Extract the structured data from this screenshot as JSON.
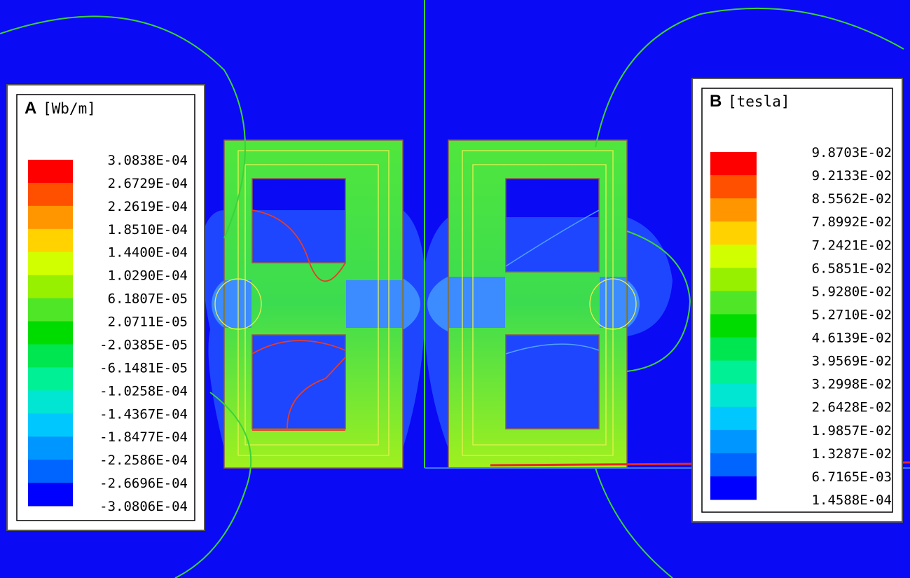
{
  "legends": [
    {
      "letter": "A",
      "unit": "[Wb/m]",
      "labels": [
        "3.0838E-04",
        "2.6729E-04",
        "2.2619E-04",
        "1.8510E-04",
        "1.4400E-04",
        "1.0290E-04",
        "6.1807E-05",
        "2.0711E-05",
        "-2.0385E-05",
        "-6.1481E-05",
        "-1.0258E-04",
        "-1.4367E-04",
        "-1.8477E-04",
        "-2.2586E-04",
        "-2.6696E-04",
        "-3.0806E-04"
      ],
      "colors": [
        "#ff0000",
        "#ff5000",
        "#ff9600",
        "#ffd200",
        "#d2ff00",
        "#96f000",
        "#50e628",
        "#00dc00",
        "#00e650",
        "#00f096",
        "#00e6d2",
        "#00c8ff",
        "#0096ff",
        "#0064ff",
        "#0000ff"
      ]
    },
    {
      "letter": "B",
      "unit": "[tesla]",
      "labels": [
        "9.8703E-02",
        "9.2133E-02",
        "8.5562E-02",
        "7.8992E-02",
        "7.2421E-02",
        "6.5851E-02",
        "5.9280E-02",
        "5.2710E-02",
        "4.6139E-02",
        "3.9569E-02",
        "3.2998E-02",
        "2.6428E-02",
        "1.9857E-02",
        "1.3287E-02",
        "6.7165E-03",
        "1.4588E-04"
      ],
      "colors": [
        "#ff0000",
        "#ff5000",
        "#ff9600",
        "#ffd200",
        "#d2ff00",
        "#96f000",
        "#50e628",
        "#00dc00",
        "#00e650",
        "#00f096",
        "#00e6d2",
        "#00c8ff",
        "#0096ff",
        "#0064ff",
        "#0000ff"
      ]
    }
  ]
}
